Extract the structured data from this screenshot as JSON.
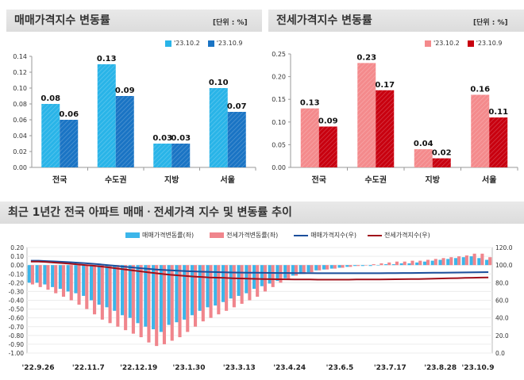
{
  "chart_data": [
    {
      "type": "bar",
      "title": "매매가격지수 변동률",
      "unit": "[단위 : %]",
      "categories": [
        "전국",
        "수도권",
        "지방",
        "서울"
      ],
      "series": [
        {
          "name": "'23.10.2",
          "values": [
            0.08,
            0.13,
            0.03,
            0.1
          ],
          "color": "#29b4e8"
        },
        {
          "name": "'23.10.9",
          "values": [
            0.06,
            0.09,
            0.03,
            0.07
          ],
          "color": "#1a74c4"
        }
      ],
      "value_labels": [
        [
          "0.08",
          "0.13",
          "0.03",
          "0.10"
        ],
        [
          "0.06",
          "0.09",
          "0.03",
          "0.07"
        ]
      ],
      "ylim": [
        0,
        0.14
      ],
      "yticks": [
        "0.00",
        "0.02",
        "0.04",
        "0.06",
        "0.08",
        "0.10",
        "0.12",
        "0.14"
      ],
      "legend_position": "top-right"
    },
    {
      "type": "bar",
      "title": "전세가격지수 변동률",
      "unit": "[단위 : %]",
      "categories": [
        "전국",
        "수도권",
        "지방",
        "서울"
      ],
      "series": [
        {
          "name": "'23.10.2",
          "values": [
            0.13,
            0.23,
            0.04,
            0.16
          ],
          "color": "#f48a8c"
        },
        {
          "name": "'23.10.9",
          "values": [
            0.09,
            0.17,
            0.02,
            0.11
          ],
          "color": "#c8000f"
        }
      ],
      "value_labels": [
        [
          "0.13",
          "0.23",
          "0.04",
          "0.16"
        ],
        [
          "0.09",
          "0.17",
          "0.02",
          "0.11"
        ]
      ],
      "ylim": [
        0,
        0.25
      ],
      "yticks": [
        "0.00",
        "0.05",
        "0.10",
        "0.15",
        "0.20",
        "0.25"
      ],
      "legend_position": "top-right"
    },
    {
      "type": "bar",
      "title": "최근 1년간 전국 아파트 매매ㆍ전세가격 지수 및 변동률 추이",
      "x_labels": [
        "'22.9.26",
        "'22.11.7",
        "'22.12.19",
        "'23.1.30",
        "'23.3.13",
        "'23.4.24",
        "'23.6.5",
        "'23.7.17",
        "'23.8.28",
        "'23.10.9"
      ],
      "left_axis": {
        "ylim": [
          -1.0,
          0.2
        ],
        "ticks": [
          "0.20",
          "0.10",
          "0.00",
          "-0.10",
          "-0.20",
          "-0.30",
          "-0.40",
          "-0.50",
          "-0.60",
          "-0.70",
          "-0.80",
          "-0.90",
          "-1.00"
        ]
      },
      "right_axis": {
        "ylim": [
          0,
          120
        ],
        "ticks": [
          "120.0",
          "100.0",
          "80.0",
          "60.0",
          "40.0",
          "20.0",
          "0.0"
        ]
      },
      "series": [
        {
          "name": "매매가격변동률(좌)",
          "kind": "bar",
          "axis": "left",
          "color": "#3cb6ea",
          "values": [
            -0.2,
            -0.2,
            -0.22,
            -0.25,
            -0.27,
            -0.3,
            -0.32,
            -0.35,
            -0.4,
            -0.45,
            -0.48,
            -0.52,
            -0.57,
            -0.6,
            -0.66,
            -0.7,
            -0.73,
            -0.76,
            -0.68,
            -0.65,
            -0.62,
            -0.57,
            -0.52,
            -0.48,
            -0.46,
            -0.42,
            -0.38,
            -0.35,
            -0.32,
            -0.27,
            -0.24,
            -0.21,
            -0.18,
            -0.15,
            -0.12,
            -0.1,
            -0.08,
            -0.06,
            -0.05,
            -0.04,
            -0.03,
            -0.02,
            -0.01,
            -0.01,
            -0.01,
            0.0,
            0.01,
            0.01,
            0.02,
            0.02,
            0.03,
            0.04,
            0.05,
            0.06,
            0.07,
            0.08,
            0.09,
            0.1,
            0.08,
            0.06
          ]
        },
        {
          "name": "전세가격변동률(좌)",
          "kind": "bar",
          "axis": "left",
          "color": "#f0858c",
          "values": [
            -0.22,
            -0.25,
            -0.28,
            -0.32,
            -0.36,
            -0.4,
            -0.45,
            -0.5,
            -0.56,
            -0.62,
            -0.66,
            -0.7,
            -0.74,
            -0.78,
            -0.82,
            -0.88,
            -0.92,
            -0.9,
            -0.86,
            -0.82,
            -0.76,
            -0.7,
            -0.64,
            -0.6,
            -0.56,
            -0.52,
            -0.48,
            -0.44,
            -0.4,
            -0.36,
            -0.3,
            -0.25,
            -0.2,
            -0.16,
            -0.12,
            -0.1,
            -0.08,
            -0.06,
            -0.05,
            -0.04,
            -0.03,
            -0.02,
            -0.01,
            0.0,
            0.01,
            0.02,
            0.03,
            0.04,
            0.04,
            0.05,
            0.05,
            0.06,
            0.07,
            0.08,
            0.09,
            0.1,
            0.11,
            0.13,
            0.13,
            0.09
          ]
        },
        {
          "name": "매매가격지수(우)",
          "kind": "line",
          "axis": "right",
          "color": "#1b4f9c",
          "values": [
            105,
            105,
            104.6,
            104.2,
            103.8,
            103.3,
            102.8,
            102.2,
            101.5,
            100.8,
            100.0,
            99.2,
            98.3,
            97.4,
            96.5,
            95.8,
            95.1,
            94.5,
            94.0,
            93.6,
            93.2,
            92.8,
            92.5,
            92.2,
            92.0,
            91.8,
            91.6,
            91.5,
            91.4,
            91.3,
            91.2,
            91.1,
            91.0,
            91.0,
            90.9,
            90.9,
            90.9,
            90.8,
            90.8,
            90.8,
            90.8,
            90.8,
            90.8,
            90.8,
            90.8,
            90.8,
            90.9,
            90.9,
            91.0,
            91.0,
            91.1,
            91.2,
            91.3,
            91.4,
            91.5,
            91.6,
            91.7,
            91.8,
            91.9,
            92.0
          ]
        },
        {
          "name": "전세가격지수(우)",
          "kind": "line",
          "axis": "right",
          "color": "#a0101a",
          "values": [
            104,
            104,
            103.5,
            102.9,
            102.3,
            101.6,
            100.9,
            100.1,
            99.3,
            98.4,
            97.4,
            96.3,
            95.2,
            94.1,
            93.0,
            91.9,
            90.9,
            89.9,
            89.0,
            88.3,
            87.6,
            87.0,
            86.5,
            86.0,
            85.7,
            85.4,
            85.1,
            84.8,
            84.6,
            84.4,
            84.2,
            84.0,
            83.9,
            83.8,
            83.7,
            83.6,
            83.6,
            83.5,
            83.5,
            83.5,
            83.5,
            83.5,
            83.6,
            83.6,
            83.7,
            83.7,
            83.8,
            83.9,
            84.0,
            84.1,
            84.2,
            84.4,
            84.6,
            84.8,
            85.0,
            85.2,
            85.4,
            85.6,
            85.8,
            86.0
          ]
        }
      ],
      "legend_position": "top"
    }
  ]
}
